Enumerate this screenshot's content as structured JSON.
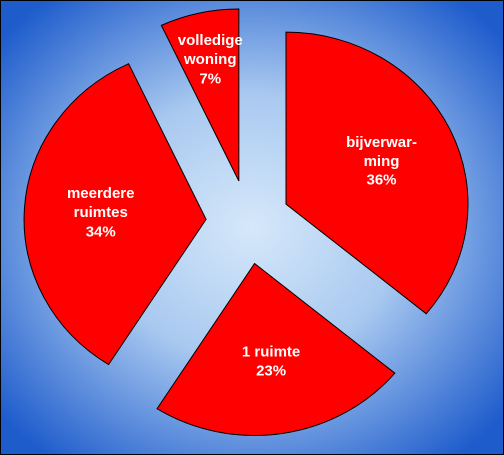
{
  "chart_data": {
    "type": "pie",
    "categories": [
      "bijverwar-\nming",
      "1 ruimte",
      "meerdere\nruimtes",
      "volledige\nwoning"
    ],
    "values": [
      36,
      23,
      34,
      7
    ],
    "value_labels": [
      "36%",
      "23%",
      "34%",
      "7%"
    ],
    "color": "#ff0000"
  }
}
